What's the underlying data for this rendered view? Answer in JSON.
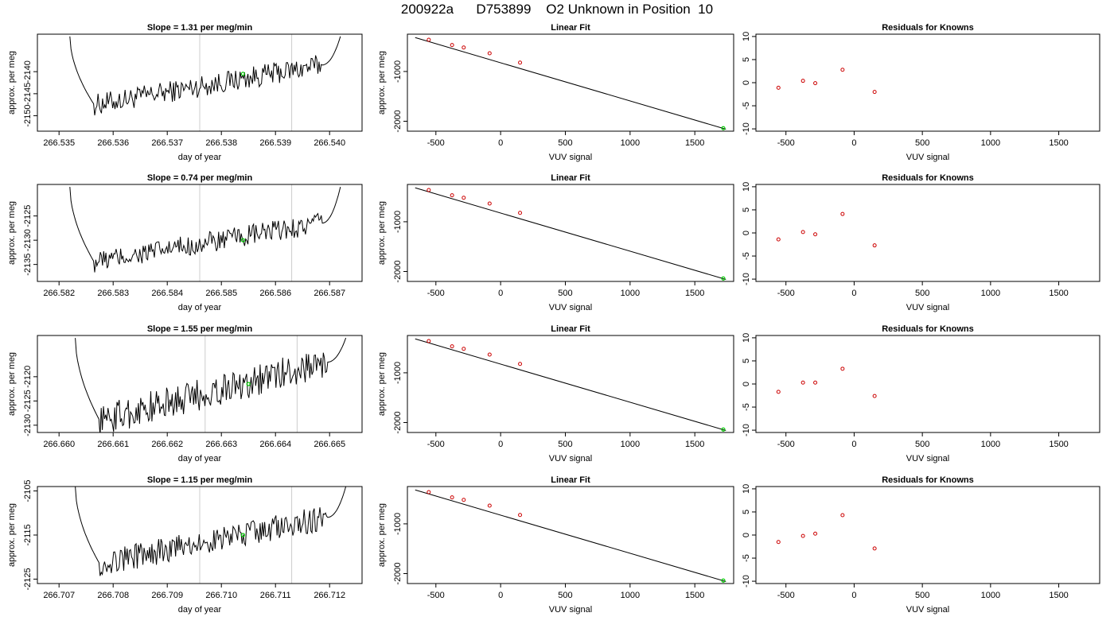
{
  "figure": {
    "title": "200922a      D753899    O2 Unknown in Position  10"
  },
  "chart_data": [
    {
      "type": "line",
      "title": "Slope =  1.31  per meg/min",
      "xlabel": "day of year",
      "ylabel": "approx. per meg",
      "xlim": [
        266.5346,
        266.5406
      ],
      "ylim": [
        -2153.5,
        -2131.5
      ],
      "xticks": [
        266.535,
        266.536,
        266.537,
        266.538,
        266.539,
        266.54
      ],
      "yticks": [
        -2140,
        -2145,
        -2150
      ],
      "vlines": [
        266.5376,
        266.5393
      ],
      "marker": {
        "x": 266.5384,
        "y": -2140.5
      },
      "trace": {
        "x0": 266.5352,
        "x1": 266.5402,
        "start": -2132,
        "end": -2132,
        "low": -2147.5,
        "high": -2138.5
      }
    },
    {
      "type": "scatter",
      "title": "Linear Fit",
      "xlabel": "VUV signal",
      "ylabel": "approx. per meg",
      "xlim": [
        -720,
        1800
      ],
      "ylim": [
        -2200,
        -250
      ],
      "xticks": [
        -500,
        0,
        500,
        1000,
        1500
      ],
      "yticks": [
        -1000,
        -2000
      ],
      "points": [
        [
          -555,
          -362
        ],
        [
          -375,
          -468
        ],
        [
          -285,
          -518
        ],
        [
          -85,
          -634
        ],
        [
          150,
          -822
        ]
      ],
      "unknown": [
        1720,
        -2140
      ],
      "fit_line": [
        [
          -660,
          -318
        ],
        [
          1740,
          -2160
        ]
      ]
    },
    {
      "type": "scatter",
      "title": "Residuals for Knowns",
      "xlabel": "VUV signal",
      "ylabel": "",
      "xlim": [
        -720,
        1800
      ],
      "ylim": [
        -10.5,
        10.5
      ],
      "xticks": [
        -500,
        0,
        500,
        1000,
        1500
      ],
      "yticks": [
        -10,
        -5,
        0,
        5,
        10
      ],
      "points": [
        [
          -555,
          -1.1
        ],
        [
          -375,
          0.4
        ],
        [
          -285,
          -0.1
        ],
        [
          -85,
          2.8
        ],
        [
          150,
          -2.0
        ]
      ]
    },
    {
      "type": "line",
      "title": "Slope =  0.74  per meg/min",
      "xlabel": "day of year",
      "ylabel": "approx. per meg",
      "xlim": [
        266.5816,
        266.5876
      ],
      "ylim": [
        -2138.5,
        -2118.5
      ],
      "xticks": [
        266.582,
        266.583,
        266.584,
        266.585,
        266.586,
        266.587
      ],
      "yticks": [
        -2125,
        -2130,
        -2135
      ],
      "vlines": [
        266.5846,
        266.5863
      ],
      "marker": {
        "x": 266.5854,
        "y": -2130
      },
      "trace": {
        "x0": 266.5822,
        "x1": 266.5872,
        "start": -2119,
        "end": -2119,
        "low": -2134.5,
        "high": -2126.5
      }
    },
    {
      "type": "scatter",
      "title": "Linear Fit",
      "xlabel": "VUV signal",
      "ylabel": "approx. per meg",
      "xlim": [
        -720,
        1800
      ],
      "ylim": [
        -2200,
        -250
      ],
      "xticks": [
        -500,
        0,
        500,
        1000,
        1500
      ],
      "yticks": [
        -1000,
        -2000
      ],
      "points": [
        [
          -555,
          -362
        ],
        [
          -375,
          -468
        ],
        [
          -285,
          -518
        ],
        [
          -85,
          -634
        ],
        [
          150,
          -822
        ]
      ],
      "unknown": [
        1720,
        -2140
      ],
      "fit_line": [
        [
          -660,
          -318
        ],
        [
          1740,
          -2160
        ]
      ]
    },
    {
      "type": "scatter",
      "title": "Residuals for Knowns",
      "xlabel": "VUV signal",
      "ylabel": "",
      "xlim": [
        -720,
        1800
      ],
      "ylim": [
        -10.5,
        10.5
      ],
      "xticks": [
        -500,
        0,
        500,
        1000,
        1500
      ],
      "yticks": [
        -10,
        -5,
        0,
        5,
        10
      ],
      "points": [
        [
          -555,
          -1.4
        ],
        [
          -375,
          0.2
        ],
        [
          -285,
          -0.3
        ],
        [
          -85,
          4.1
        ],
        [
          150,
          -2.7
        ]
      ]
    },
    {
      "type": "line",
      "title": "Slope =  1.55  per meg/min",
      "xlabel": "day of year",
      "ylabel": "approx. per meg",
      "xlim": [
        266.6596,
        266.6656
      ],
      "ylim": [
        -2131.5,
        -2111.5
      ],
      "xticks": [
        266.66,
        266.661,
        266.662,
        266.663,
        266.664,
        266.665
      ],
      "yticks": [
        -2120,
        -2125,
        -2130
      ],
      "vlines": [
        266.6627,
        266.6644
      ],
      "marker": {
        "x": 266.6635,
        "y": -2121.5
      },
      "trace": {
        "x0": 266.6603,
        "x1": 266.6653,
        "start": -2112,
        "end": -2112,
        "low": -2129,
        "high": -2117
      }
    },
    {
      "type": "scatter",
      "title": "Linear Fit",
      "xlabel": "VUV signal",
      "ylabel": "approx. per meg",
      "xlim": [
        -720,
        1800
      ],
      "ylim": [
        -2200,
        -250
      ],
      "xticks": [
        -500,
        0,
        500,
        1000,
        1500
      ],
      "yticks": [
        -1000,
        -2000
      ],
      "points": [
        [
          -555,
          -362
        ],
        [
          -375,
          -468
        ],
        [
          -285,
          -518
        ],
        [
          -85,
          -634
        ],
        [
          150,
          -822
        ]
      ],
      "unknown": [
        1720,
        -2140
      ],
      "fit_line": [
        [
          -660,
          -318
        ],
        [
          1740,
          -2160
        ]
      ]
    },
    {
      "type": "scatter",
      "title": "Residuals for Knowns",
      "xlabel": "VUV signal",
      "ylabel": "",
      "xlim": [
        -720,
        1800
      ],
      "ylim": [
        -10.5,
        10.5
      ],
      "xticks": [
        -500,
        0,
        500,
        1000,
        1500
      ],
      "yticks": [
        -10,
        -5,
        0,
        5,
        10
      ],
      "points": [
        [
          -555,
          -1.7
        ],
        [
          -375,
          0.3
        ],
        [
          -285,
          0.3
        ],
        [
          -85,
          3.3
        ],
        [
          150,
          -2.6
        ]
      ]
    },
    {
      "type": "line",
      "title": "Slope =  1.15  per meg/min",
      "xlabel": "day of year",
      "ylabel": "approx. per meg",
      "xlim": [
        266.7066,
        266.7126
      ],
      "ylim": [
        -2126,
        -2104
      ],
      "xticks": [
        266.707,
        266.708,
        266.709,
        266.71,
        266.711,
        266.712
      ],
      "yticks": [
        -2105,
        -2115,
        -2125
      ],
      "vlines": [
        266.7096,
        266.7113
      ],
      "marker": {
        "x": 266.7104,
        "y": -2115
      },
      "trace": {
        "x0": 266.7073,
        "x1": 266.7123,
        "start": -2104,
        "end": -2104,
        "low": -2121.5,
        "high": -2111
      }
    },
    {
      "type": "scatter",
      "title": "Linear Fit",
      "xlabel": "VUV signal",
      "ylabel": "approx. per meg",
      "xlim": [
        -720,
        1800
      ],
      "ylim": [
        -2200,
        -250
      ],
      "xticks": [
        -500,
        0,
        500,
        1000,
        1500
      ],
      "yticks": [
        -1000,
        -2000
      ],
      "points": [
        [
          -555,
          -362
        ],
        [
          -375,
          -468
        ],
        [
          -285,
          -518
        ],
        [
          -85,
          -634
        ],
        [
          150,
          -822
        ]
      ],
      "unknown": [
        1720,
        -2140
      ],
      "fit_line": [
        [
          -660,
          -318
        ],
        [
          1740,
          -2160
        ]
      ]
    },
    {
      "type": "scatter",
      "title": "Residuals for Knowns",
      "xlabel": "VUV signal",
      "ylabel": "",
      "xlim": [
        -720,
        1800
      ],
      "ylim": [
        -10.5,
        10.5
      ],
      "xticks": [
        -500,
        0,
        500,
        1000,
        1500
      ],
      "yticks": [
        -10,
        -5,
        0,
        5,
        10
      ],
      "points": [
        [
          -555,
          -1.5
        ],
        [
          -375,
          -0.2
        ],
        [
          -285,
          0.3
        ],
        [
          -85,
          4.3
        ],
        [
          150,
          -2.9
        ]
      ]
    }
  ],
  "colors": {
    "known": "#cc0000",
    "unknown": "#00cc00",
    "line": "#000000",
    "vline": "#cccccc"
  }
}
